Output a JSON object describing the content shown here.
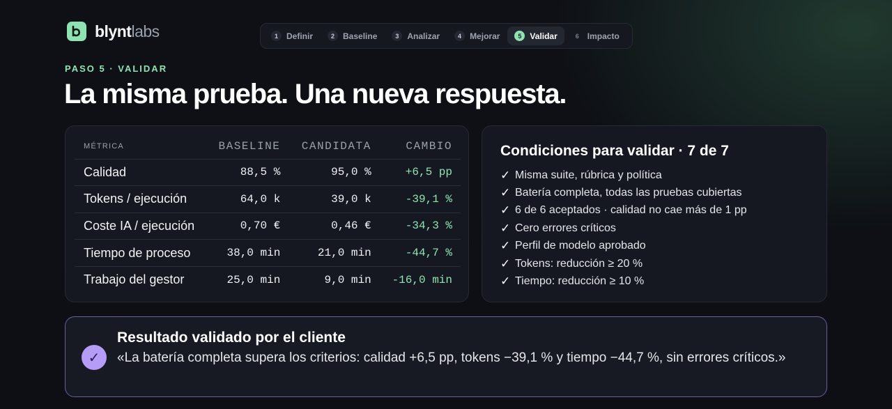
{
  "brand": {
    "name_bold": "blynt",
    "name_light": "labs",
    "icon": "b-logo-icon"
  },
  "stepper": {
    "steps": [
      {
        "num": "1",
        "label": "Definir",
        "state": "done"
      },
      {
        "num": "2",
        "label": "Baseline",
        "state": "done"
      },
      {
        "num": "3",
        "label": "Analizar",
        "state": "done"
      },
      {
        "num": "4",
        "label": "Mejorar",
        "state": "done"
      },
      {
        "num": "5",
        "label": "Validar",
        "state": "active"
      },
      {
        "num": "6",
        "label": "Impacto",
        "state": "future"
      }
    ]
  },
  "eyebrow": "PASO 5 · VALIDAR",
  "title": "La misma prueba. Una nueva respuesta.",
  "metrics": {
    "headers": [
      "MÉTRICA",
      "BASELINE",
      "CANDIDATA",
      "CAMBIO"
    ],
    "rows": [
      {
        "metric": "Calidad",
        "baseline": "88,5 %",
        "candidate": "95,0 %",
        "change": "+6,5 pp"
      },
      {
        "metric": "Tokens / ejecución",
        "baseline": "64,0 k",
        "candidate": "39,0 k",
        "change": "-39,1 %"
      },
      {
        "metric": "Coste IA / ejecución",
        "baseline": "0,70 €",
        "candidate": "0,46 €",
        "change": "-34,3 %"
      },
      {
        "metric": "Tiempo de proceso",
        "baseline": "38,0 min",
        "candidate": "21,0 min",
        "change": "-44,7 %"
      },
      {
        "metric": "Trabajo del gestor",
        "baseline": "25,0 min",
        "candidate": "9,0 min",
        "change": "-16,0 min"
      }
    ]
  },
  "conditions": {
    "title": "Condiciones para validar · 7 de 7",
    "check_glyph": "✓",
    "items": [
      "Misma suite, rúbrica y política",
      "Batería completa, todas las pruebas cubiertas",
      "6 de 6 aceptados · calidad no cae más de 1 pp",
      "Cero errores críticos",
      "Perfil de modelo aprobado",
      "Tokens: reducción ≥ 20 %",
      "Tiempo: reducción ≥ 10 %"
    ]
  },
  "result": {
    "badge": "✓",
    "title": "Resultado validado por el cliente",
    "text": "«La batería completa supera los criterios: calidad +6,5 pp, tokens −39,1 % y tiempo −44,7 %, sin errores críticos.»"
  },
  "colors": {
    "accent_green": "#8fe3b3",
    "accent_purple": "#b49cf7",
    "background": "#0d0f14"
  }
}
